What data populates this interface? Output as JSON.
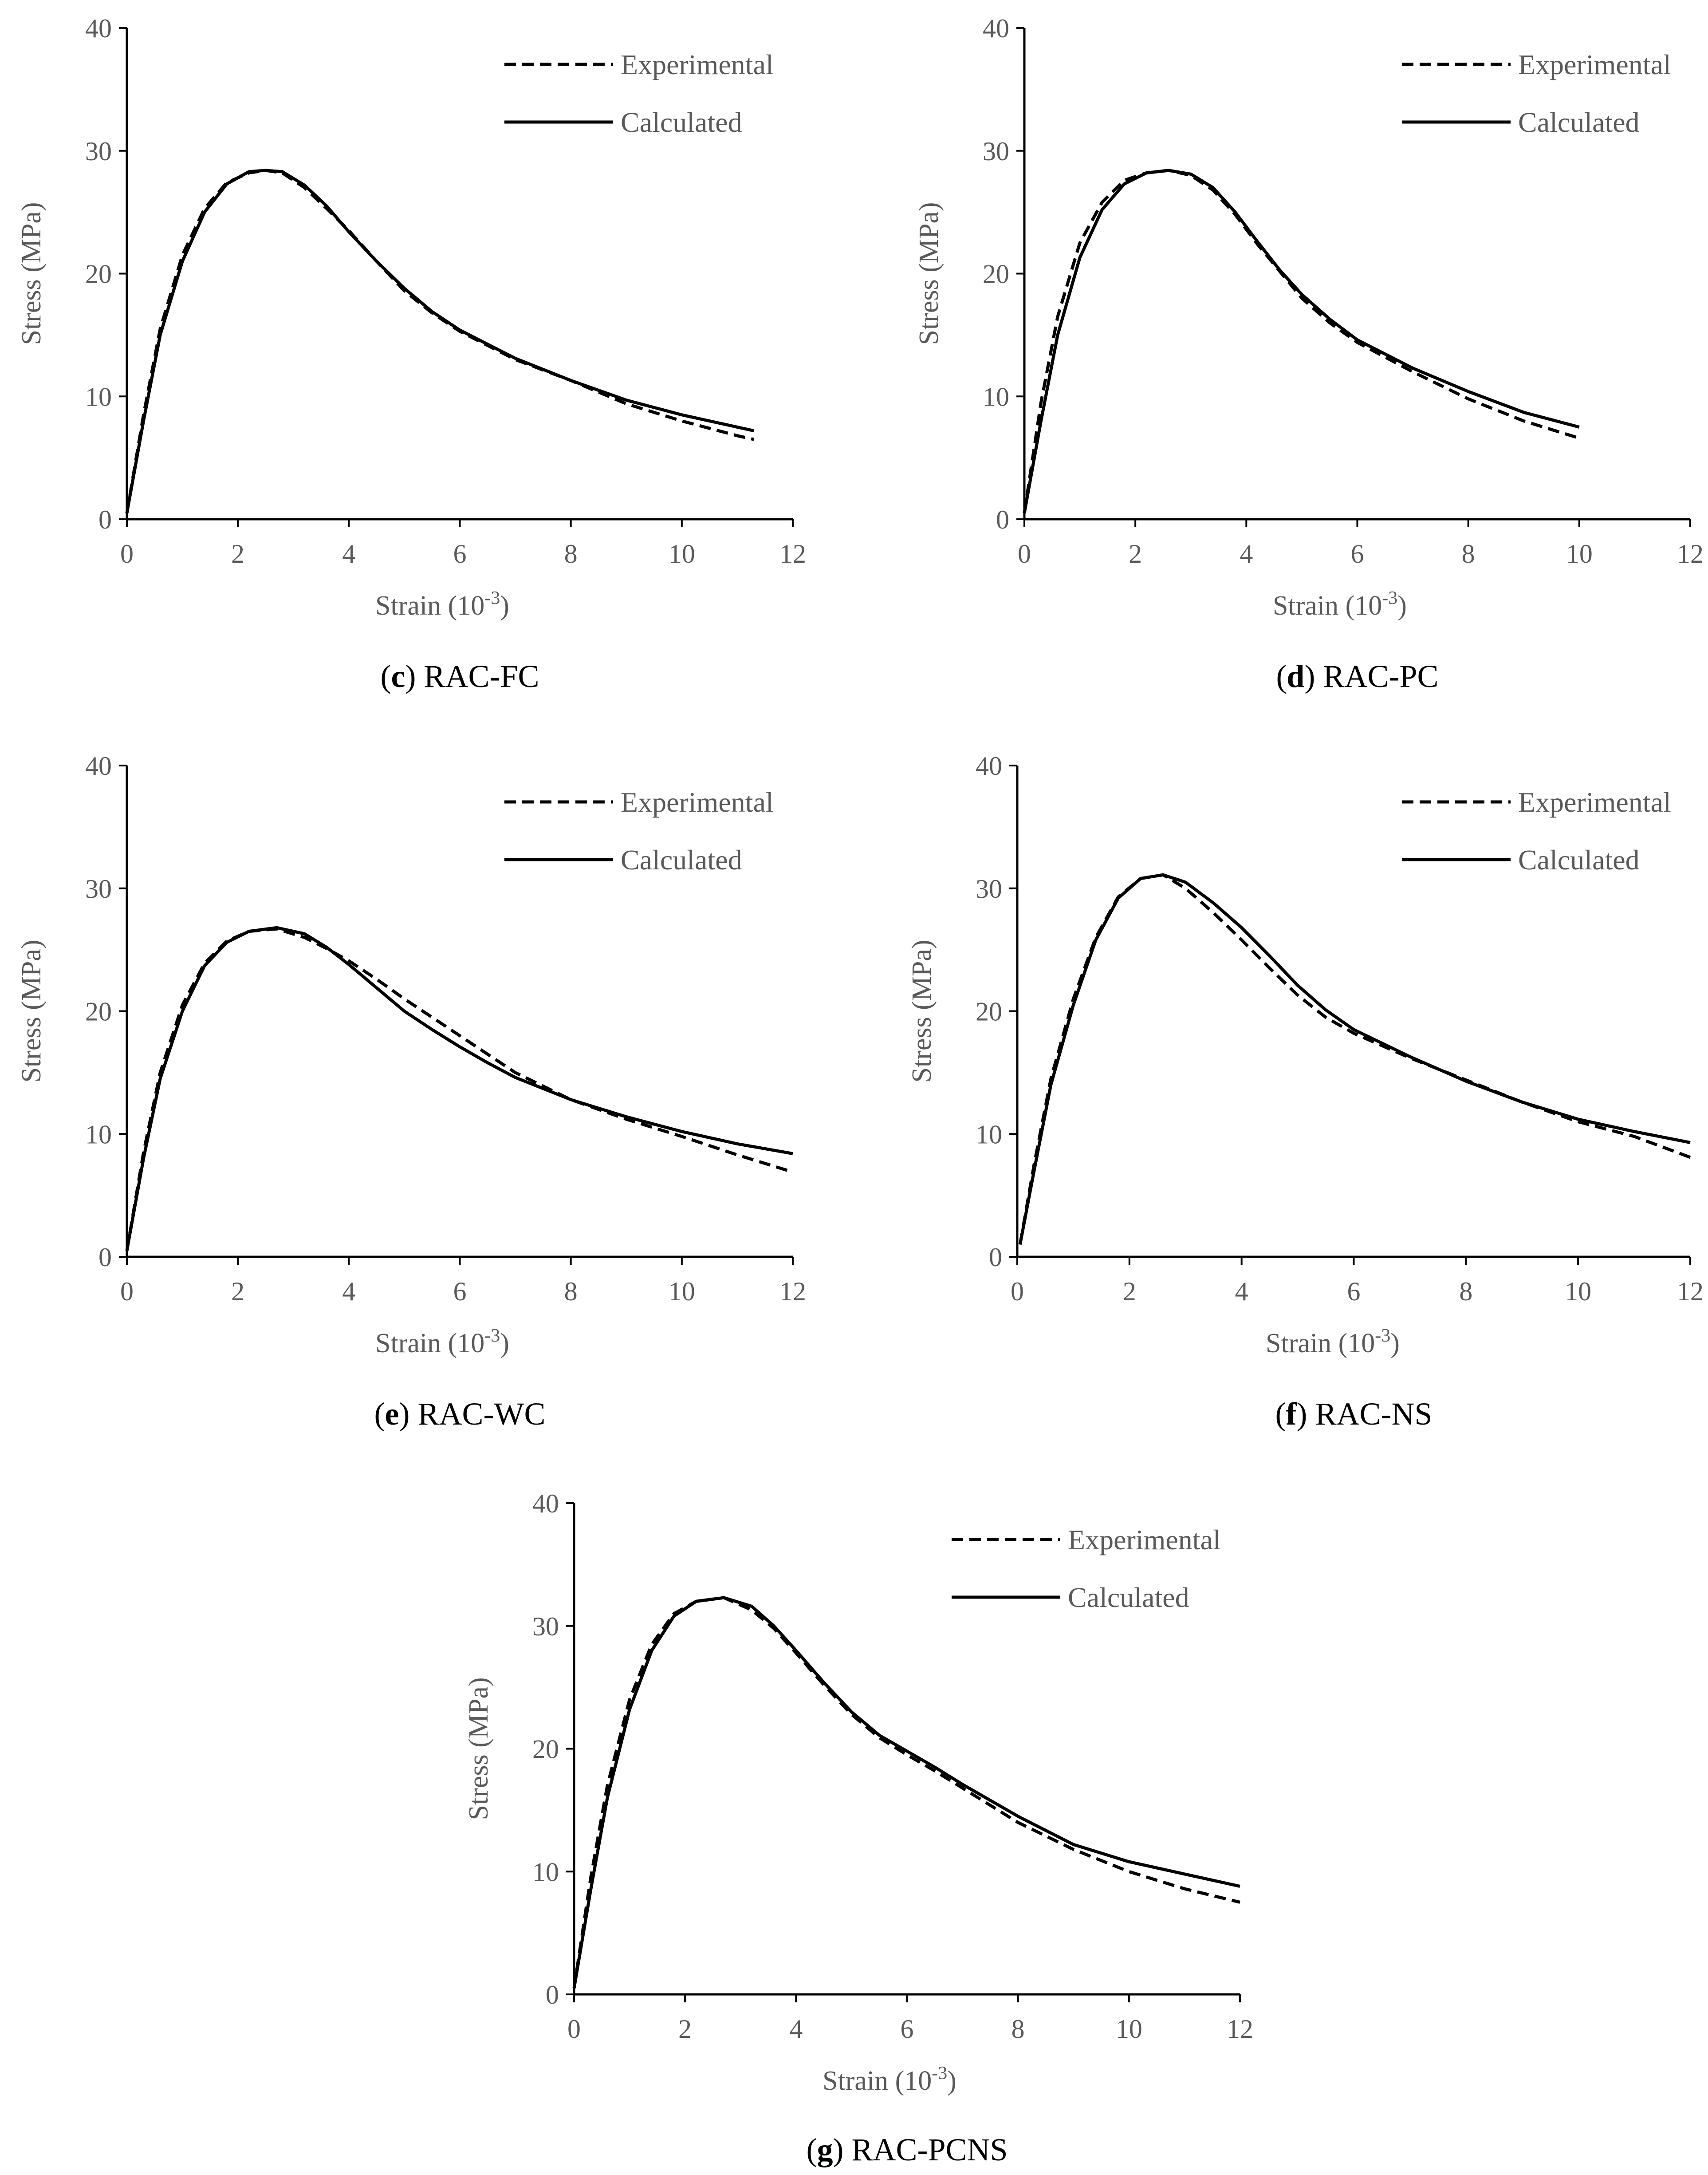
{
  "colors": {
    "axis": "#000000",
    "text": "#595959",
    "caption": "#000000",
    "background": "#ffffff"
  },
  "chart_data": [
    {
      "id": "c",
      "type": "line",
      "caption_letter": "c",
      "caption_text": " RAC-FC",
      "xlabel": "Strain",
      "xlabel_unit": "(10",
      "xlabel_exp": "-3",
      "xlabel_close": ")",
      "ylabel": "Stress (MPa)",
      "xlim": [
        0,
        12
      ],
      "ylim": [
        0,
        40
      ],
      "xticks": [
        "0",
        "2",
        "4",
        "6",
        "8",
        "10",
        "12"
      ],
      "yticks": [
        "0",
        "10",
        "20",
        "30",
        "40"
      ],
      "legend": [
        "Experimental",
        "Calculated"
      ],
      "legend_position": "top-right",
      "series": [
        {
          "name": "Experimental",
          "style": "dashed",
          "x": [
            0,
            0.3,
            0.6,
            1.0,
            1.4,
            1.8,
            2.2,
            2.5,
            2.8,
            3.2,
            3.6,
            4.0,
            4.5,
            5.0,
            5.5,
            6.0,
            7.0,
            8.0,
            9.0,
            10.0,
            11.0,
            11.3
          ],
          "y": [
            0.5,
            8.5,
            15.5,
            21.5,
            25.3,
            27.4,
            28.2,
            28.4,
            28.2,
            27.0,
            25.3,
            23.5,
            21.0,
            18.6,
            16.8,
            15.3,
            13.0,
            11.3,
            9.4,
            8.0,
            6.8,
            6.5
          ]
        },
        {
          "name": "Calculated",
          "style": "solid",
          "x": [
            0,
            0.3,
            0.6,
            1.0,
            1.4,
            1.8,
            2.2,
            2.5,
            2.8,
            3.2,
            3.6,
            4.0,
            4.5,
            5.0,
            5.5,
            6.0,
            7.0,
            8.0,
            9.0,
            10.0,
            11.0,
            11.3
          ],
          "y": [
            0.5,
            8.0,
            15.0,
            21.0,
            25.0,
            27.3,
            28.3,
            28.4,
            28.3,
            27.2,
            25.5,
            23.4,
            21.0,
            18.8,
            16.9,
            15.4,
            13.1,
            11.3,
            9.7,
            8.5,
            7.5,
            7.2
          ]
        }
      ]
    },
    {
      "id": "d",
      "type": "line",
      "caption_letter": "d",
      "caption_text": " RAC-PC",
      "xlabel": "Strain",
      "xlabel_unit": "(10",
      "xlabel_exp": "-3",
      "xlabel_close": ")",
      "ylabel": "Stress (MPa)",
      "xlim": [
        0,
        12
      ],
      "ylim": [
        0,
        40
      ],
      "xticks": [
        "0",
        "2",
        "4",
        "6",
        "8",
        "10",
        "12"
      ],
      "yticks": [
        "0",
        "10",
        "20",
        "30",
        "40"
      ],
      "legend": [
        "Experimental",
        "Calculated"
      ],
      "legend_position": "top-right",
      "series": [
        {
          "name": "Experimental",
          "style": "dashed",
          "x": [
            0,
            0.3,
            0.6,
            1.0,
            1.4,
            1.8,
            2.2,
            2.6,
            3.0,
            3.4,
            3.8,
            4.2,
            4.6,
            5.0,
            5.5,
            6.0,
            7.0,
            8.0,
            9.0,
            10.0
          ],
          "y": [
            0.5,
            9.5,
            16.5,
            22.5,
            25.8,
            27.6,
            28.2,
            28.4,
            28.0,
            26.8,
            24.8,
            22.4,
            20.2,
            18.0,
            16.0,
            14.4,
            12.0,
            9.8,
            8.0,
            6.6
          ]
        },
        {
          "name": "Calculated",
          "style": "solid",
          "x": [
            0,
            0.3,
            0.6,
            1.0,
            1.4,
            1.8,
            2.2,
            2.6,
            3.0,
            3.4,
            3.8,
            4.2,
            4.6,
            5.0,
            5.5,
            6.0,
            7.0,
            8.0,
            9.0,
            10.0
          ],
          "y": [
            0.5,
            8.0,
            15.0,
            21.3,
            25.2,
            27.3,
            28.2,
            28.4,
            28.1,
            27.0,
            25.0,
            22.6,
            20.3,
            18.3,
            16.3,
            14.6,
            12.3,
            10.4,
            8.7,
            7.5
          ]
        }
      ]
    },
    {
      "id": "e",
      "type": "line",
      "caption_letter": "e",
      "caption_text": " RAC-WC",
      "xlabel": "Strain",
      "xlabel_unit": "(10",
      "xlabel_exp": "-3",
      "xlabel_close": ")",
      "ylabel": "Stress (MPa)",
      "xlim": [
        0,
        12
      ],
      "ylim": [
        0,
        40
      ],
      "xticks": [
        "0",
        "2",
        "4",
        "6",
        "8",
        "10",
        "12"
      ],
      "yticks": [
        "0",
        "10",
        "20",
        "30",
        "40"
      ],
      "legend": [
        "Experimental",
        "Calculated"
      ],
      "legend_position": "top-right",
      "series": [
        {
          "name": "Experimental",
          "style": "dashed",
          "x": [
            0,
            0.3,
            0.6,
            1.0,
            1.4,
            1.8,
            2.2,
            2.7,
            3.2,
            3.6,
            4.0,
            4.5,
            5.0,
            5.5,
            6.0,
            6.5,
            7.0,
            8.0,
            9.0,
            10.0,
            11.0,
            12.0
          ],
          "y": [
            0.5,
            8.5,
            15.0,
            20.5,
            23.9,
            25.7,
            26.5,
            26.7,
            26.0,
            25.1,
            24.1,
            22.6,
            21.0,
            19.5,
            18.0,
            16.5,
            15.0,
            12.8,
            11.2,
            9.8,
            8.3,
            6.9
          ]
        },
        {
          "name": "Calculated",
          "style": "solid",
          "x": [
            0,
            0.3,
            0.6,
            1.0,
            1.4,
            1.8,
            2.2,
            2.7,
            3.2,
            3.6,
            4.0,
            4.5,
            5.0,
            5.5,
            6.0,
            6.5,
            7.0,
            8.0,
            9.0,
            10.0,
            11.0,
            12.0
          ],
          "y": [
            0.5,
            8.0,
            14.5,
            20.0,
            23.7,
            25.6,
            26.5,
            26.8,
            26.3,
            25.2,
            23.8,
            21.9,
            20.0,
            18.5,
            17.1,
            15.8,
            14.6,
            12.8,
            11.4,
            10.2,
            9.2,
            8.4
          ]
        }
      ]
    },
    {
      "id": "f",
      "type": "line",
      "caption_letter": "f",
      "caption_text": " RAC-NS",
      "xlabel": "Strain",
      "xlabel_unit": "(10",
      "xlabel_exp": "-3",
      "xlabel_close": ")",
      "ylabel": "Stress (MPa)",
      "xlim": [
        0,
        12
      ],
      "ylim": [
        0,
        40
      ],
      "xticks": [
        "0",
        "2",
        "4",
        "6",
        "8",
        "10",
        "12"
      ],
      "yticks": [
        "0",
        "10",
        "20",
        "30",
        "40"
      ],
      "legend": [
        "Experimental",
        "Calculated"
      ],
      "legend_position": "top-right",
      "series": [
        {
          "name": "Experimental",
          "style": "dashed",
          "x": [
            0.05,
            0.3,
            0.6,
            1.0,
            1.4,
            1.8,
            2.2,
            2.6,
            3.0,
            3.5,
            4.0,
            4.5,
            5.0,
            5.5,
            6.0,
            7.0,
            8.0,
            9.0,
            10.0,
            11.0,
            12.0
          ],
          "y": [
            1.0,
            7.5,
            14.5,
            21.0,
            26.0,
            29.3,
            30.8,
            31.1,
            30.0,
            28.0,
            25.8,
            23.5,
            21.3,
            19.5,
            18.2,
            16.2,
            14.4,
            12.6,
            11.0,
            9.8,
            8.1
          ]
        },
        {
          "name": "Calculated",
          "style": "solid",
          "x": [
            0.05,
            0.3,
            0.6,
            1.0,
            1.4,
            1.8,
            2.2,
            2.6,
            3.0,
            3.5,
            4.0,
            4.5,
            5.0,
            5.5,
            6.0,
            7.0,
            8.0,
            9.0,
            10.0,
            11.0,
            12.0
          ],
          "y": [
            1.0,
            7.0,
            14.0,
            20.5,
            25.8,
            29.2,
            30.8,
            31.1,
            30.5,
            28.8,
            26.8,
            24.5,
            22.1,
            20.1,
            18.5,
            16.3,
            14.3,
            12.6,
            11.2,
            10.2,
            9.3
          ]
        }
      ]
    },
    {
      "id": "g",
      "type": "line",
      "caption_letter": "g",
      "caption_text": " RAC-PCNS",
      "xlabel": "Strain",
      "xlabel_unit": "(10",
      "xlabel_exp": "-3",
      "xlabel_close": ")",
      "ylabel": "Stress (MPa)",
      "xlim": [
        0,
        12
      ],
      "ylim": [
        0,
        40
      ],
      "xticks": [
        "0",
        "2",
        "4",
        "6",
        "8",
        "10",
        "12"
      ],
      "yticks": [
        "0",
        "10",
        "20",
        "30",
        "40"
      ],
      "legend": [
        "Experimental",
        "Calculated"
      ],
      "legend_position": "top-right",
      "series": [
        {
          "name": "Experimental",
          "style": "dashed",
          "x": [
            0,
            0.3,
            0.6,
            1.0,
            1.4,
            1.8,
            2.2,
            2.7,
            3.2,
            3.6,
            4.0,
            4.5,
            5.0,
            5.5,
            6.0,
            6.5,
            7.0,
            8.0,
            9.0,
            10.0,
            11.0,
            12.0
          ],
          "y": [
            0.5,
            9.5,
            17.0,
            24.0,
            28.5,
            31.0,
            32.0,
            32.3,
            31.3,
            29.8,
            27.8,
            25.2,
            22.8,
            20.9,
            19.5,
            18.2,
            16.8,
            14.0,
            11.8,
            10.0,
            8.6,
            7.5
          ]
        },
        {
          "name": "Calculated",
          "style": "solid",
          "x": [
            0,
            0.3,
            0.6,
            1.0,
            1.4,
            1.8,
            2.2,
            2.7,
            3.2,
            3.6,
            4.0,
            4.5,
            5.0,
            5.5,
            6.0,
            6.5,
            7.0,
            8.0,
            9.0,
            10.0,
            11.0,
            12.0
          ],
          "y": [
            0.5,
            8.5,
            16.0,
            23.2,
            28.0,
            30.8,
            32.0,
            32.3,
            31.6,
            30.0,
            28.0,
            25.4,
            23.0,
            21.1,
            19.8,
            18.5,
            17.1,
            14.5,
            12.2,
            10.8,
            9.8,
            8.8
          ]
        }
      ]
    }
  ]
}
